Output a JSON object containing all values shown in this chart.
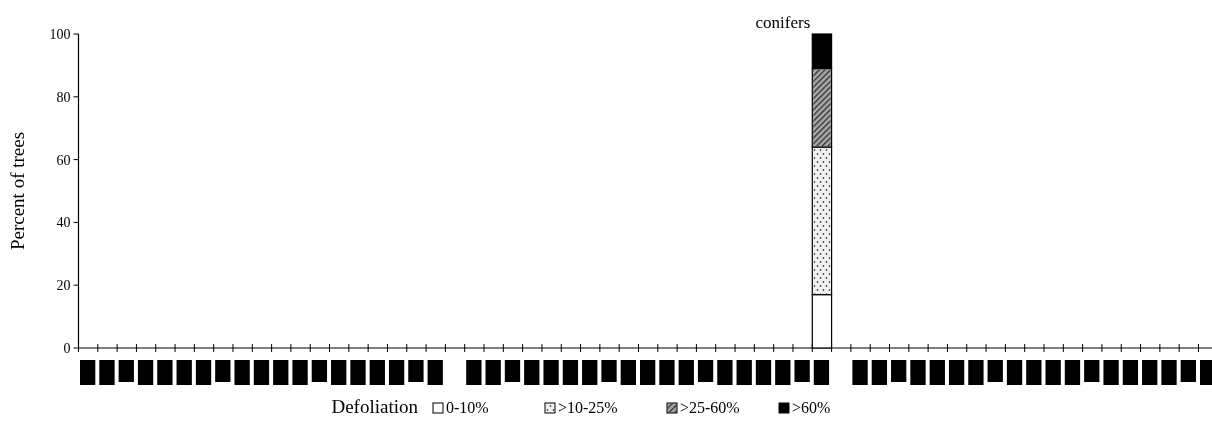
{
  "chart_data": {
    "type": "bar",
    "stacked": true,
    "ylabel": "Percent of trees",
    "xlabel": "Defoliation",
    "annotations": [
      "conifers"
    ],
    "categories": [
      null,
      null,
      null,
      null,
      null,
      null,
      null,
      null,
      null,
      null,
      null,
      null,
      null,
      null,
      null,
      null,
      null,
      null,
      null,
      null,
      null,
      null,
      null,
      null,
      null,
      null,
      null,
      null,
      null,
      null,
      null,
      null,
      null,
      null,
      null,
      null,
      null,
      null,
      null,
      null,
      null,
      null,
      null,
      null,
      null,
      null,
      null,
      null,
      null,
      null,
      null,
      null,
      null,
      null,
      null,
      null,
      null,
      null,
      null
    ],
    "series": [
      {
        "name": "0-10%",
        "color": "#ffffff",
        "values": [
          null,
          null,
          null,
          null,
          null,
          null,
          null,
          null,
          null,
          null,
          null,
          null,
          null,
          null,
          null,
          null,
          null,
          null,
          null,
          null,
          null,
          null,
          null,
          null,
          null,
          null,
          null,
          null,
          null,
          null,
          null,
          null,
          null,
          null,
          null,
          null,
          null,
          null,
          17,
          null,
          null,
          null,
          null,
          null,
          null,
          null,
          null,
          null,
          null,
          null,
          null,
          null,
          null,
          null,
          null,
          null,
          null,
          null,
          null
        ]
      },
      {
        "name": ">10-25%",
        "color": "#f0f0f0",
        "values": [
          null,
          null,
          null,
          null,
          null,
          null,
          null,
          null,
          null,
          null,
          null,
          null,
          null,
          null,
          null,
          null,
          null,
          null,
          null,
          null,
          null,
          null,
          null,
          null,
          null,
          null,
          null,
          null,
          null,
          null,
          null,
          null,
          null,
          null,
          null,
          null,
          null,
          null,
          47,
          null,
          null,
          null,
          null,
          null,
          null,
          null,
          null,
          null,
          null,
          null,
          null,
          null,
          null,
          null,
          null,
          null,
          null,
          null,
          null
        ]
      },
      {
        "name": ">25-60%",
        "color": "#aaaaaa",
        "values": [
          null,
          null,
          null,
          null,
          null,
          null,
          null,
          null,
          null,
          null,
          null,
          null,
          null,
          null,
          null,
          null,
          null,
          null,
          null,
          null,
          null,
          null,
          null,
          null,
          null,
          null,
          null,
          null,
          null,
          null,
          null,
          null,
          null,
          null,
          null,
          null,
          null,
          null,
          25,
          null,
          null,
          null,
          null,
          null,
          null,
          null,
          null,
          null,
          null,
          null,
          null,
          null,
          null,
          null,
          null,
          null,
          null,
          null,
          null
        ]
      },
      {
        "name": ">60%",
        "color": "#000000",
        "values": [
          null,
          null,
          null,
          null,
          null,
          null,
          null,
          null,
          null,
          null,
          null,
          null,
          null,
          null,
          null,
          null,
          null,
          null,
          null,
          null,
          null,
          null,
          null,
          null,
          null,
          null,
          null,
          null,
          null,
          null,
          null,
          null,
          null,
          null,
          null,
          null,
          null,
          null,
          11,
          null,
          null,
          null,
          null,
          null,
          null,
          null,
          null,
          null,
          null,
          null,
          null,
          null,
          null,
          null,
          null,
          null,
          null,
          null,
          null
        ]
      }
    ],
    "ylim": [
      0,
      100
    ],
    "yticks": [
      0,
      20,
      40,
      60,
      80,
      100
    ],
    "grid": false,
    "legend": "bottom"
  }
}
